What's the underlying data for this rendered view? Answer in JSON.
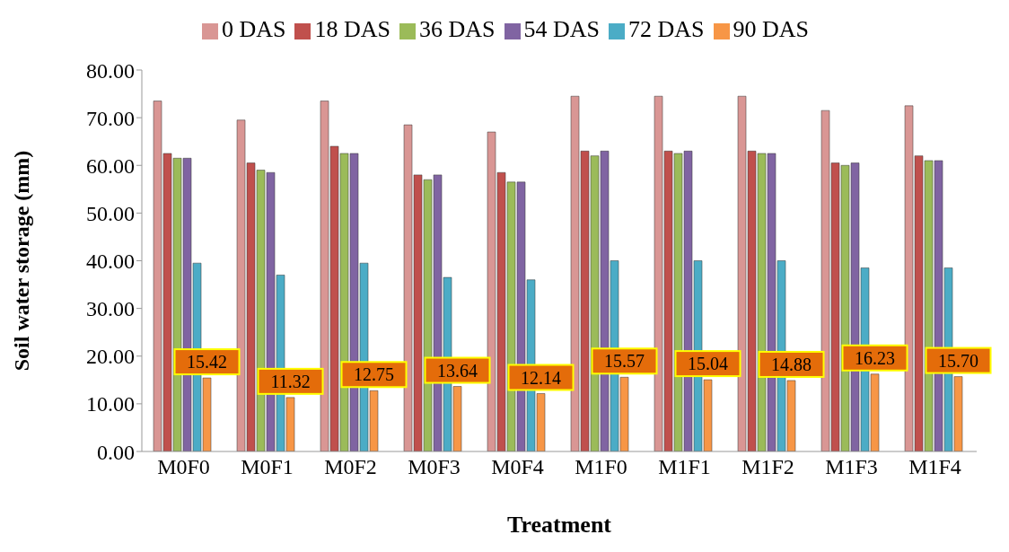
{
  "chart_data": {
    "type": "bar",
    "xlabel": "Treatment",
    "ylabel": "Soil water storage (mm)",
    "categories": [
      "M0F0",
      "M0F1",
      "M0F2",
      "M0F3",
      "M0F4",
      "M1F0",
      "M1F1",
      "M1F2",
      "M1F3",
      "M1F4"
    ],
    "series": [
      {
        "name": "0 DAS",
        "color": "#d99694",
        "values": [
          73.5,
          69.5,
          73.5,
          68.5,
          67,
          74.5,
          74.5,
          74.5,
          71.5,
          72.5
        ]
      },
      {
        "name": "18 DAS",
        "color": "#c0504d",
        "values": [
          62.5,
          60.5,
          64,
          58,
          58.5,
          63,
          63,
          63,
          60.5,
          62
        ]
      },
      {
        "name": "36 DAS",
        "color": "#9bbb59",
        "values": [
          61.5,
          59,
          62.5,
          57,
          56.5,
          62,
          62.5,
          62.5,
          60,
          61
        ]
      },
      {
        "name": "54 DAS",
        "color": "#8064a2",
        "values": [
          61.5,
          58.5,
          62.5,
          58,
          56.5,
          63,
          63,
          62.5,
          60.5,
          61
        ]
      },
      {
        "name": "72 DAS",
        "color": "#4bacc6",
        "values": [
          39.5,
          37,
          39.5,
          36.5,
          36,
          40,
          40,
          40,
          38.5,
          38.5
        ]
      },
      {
        "name": "90 DAS",
        "color": "#f79646",
        "values": [
          15.42,
          11.32,
          12.75,
          13.64,
          12.14,
          15.57,
          15.04,
          14.88,
          16.23,
          15.7
        ],
        "value_labels": [
          "15.42",
          "11.32",
          "12.75",
          "13.64",
          "12.14",
          "15.57",
          "15.04",
          "14.88",
          "16.23",
          "15.70"
        ]
      }
    ],
    "ylim": [
      0,
      80
    ],
    "yticks": [
      {
        "value": 0,
        "label": "0.00"
      },
      {
        "value": 10,
        "label": "10.00"
      },
      {
        "value": 20,
        "label": "20.00"
      },
      {
        "value": 30,
        "label": "30.00"
      },
      {
        "value": 40,
        "label": "40.00"
      },
      {
        "value": 50,
        "label": "50.00"
      },
      {
        "value": 60,
        "label": "60.00"
      },
      {
        "value": 70,
        "label": "70.00"
      },
      {
        "value": 80,
        "label": "80.00"
      }
    ],
    "grid": false,
    "legend": "top"
  }
}
